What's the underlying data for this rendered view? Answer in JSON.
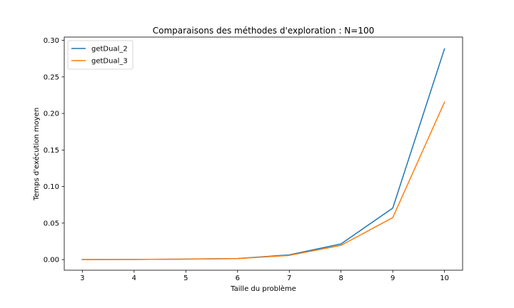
{
  "chart_data": {
    "type": "line",
    "title": "Comparaisons des méthodes d'exploration : N=100",
    "xlabel": "Taille du problème",
    "ylabel": "Temps d'exécution moyen",
    "x": [
      3,
      4,
      5,
      6,
      7,
      8,
      9,
      10
    ],
    "xlim": [
      2.65,
      10.35
    ],
    "ylim": [
      -0.0145,
      0.3045
    ],
    "xticks": [
      "3",
      "4",
      "5",
      "6",
      "7",
      "8",
      "9",
      "10"
    ],
    "xtick_values": [
      3,
      4,
      5,
      6,
      7,
      8,
      9,
      10
    ],
    "yticks": [
      "0.00",
      "0.05",
      "0.10",
      "0.15",
      "0.20",
      "0.25",
      "0.30"
    ],
    "ytick_values": [
      0.0,
      0.05,
      0.1,
      0.15,
      0.2,
      0.25,
      0.3
    ],
    "grid": false,
    "legend_position": "top-left",
    "series": [
      {
        "name": "getDual_2",
        "color": "#1f77b4",
        "values": [
          0.0001,
          0.0003,
          0.0007,
          0.0015,
          0.0065,
          0.0215,
          0.0705,
          0.2885
        ]
      },
      {
        "name": "getDual_3",
        "color": "#ff7f0e",
        "values": [
          0.0001,
          0.0003,
          0.0006,
          0.0013,
          0.0058,
          0.0195,
          0.0575,
          0.2155
        ]
      }
    ]
  }
}
